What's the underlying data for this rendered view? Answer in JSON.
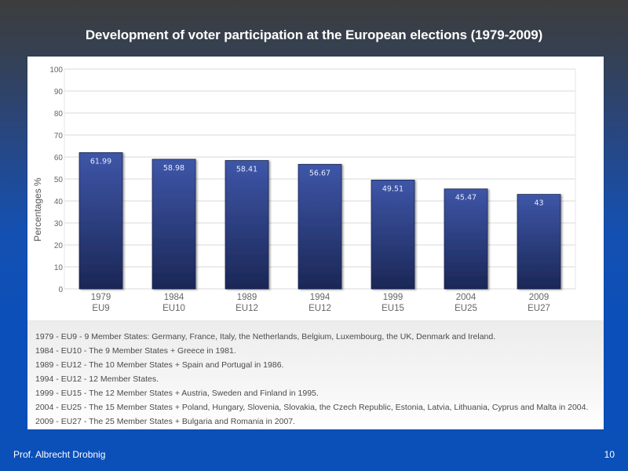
{
  "slide": {
    "title": "Development of voter participation at the European elections (1979-2009)",
    "footer_author": "Prof. Albrecht Drobnig",
    "page_number": "10"
  },
  "chart_data": {
    "type": "bar",
    "title": "Development of voter participation at the European elections (1979-2009)",
    "categories": [
      [
        "1979",
        "EU9"
      ],
      [
        "1984",
        "EU10"
      ],
      [
        "1989",
        "EU12"
      ],
      [
        "1994",
        "EU12"
      ],
      [
        "1999",
        "EU15"
      ],
      [
        "2004",
        "EU25"
      ],
      [
        "2009",
        "EU27"
      ]
    ],
    "values": [
      61.99,
      58.98,
      58.41,
      56.67,
      49.51,
      45.47,
      43
    ],
    "value_labels": [
      "61.99",
      "58.98",
      "58.41",
      "56.67",
      "49.51",
      "45.47",
      "43"
    ],
    "xlabel": "",
    "ylabel": "Percentages %",
    "ylim": [
      0,
      100
    ],
    "yticks": [
      0,
      10,
      20,
      30,
      40,
      50,
      60,
      70,
      80,
      90,
      100
    ],
    "grid": true,
    "legend": "none",
    "colors": {
      "bar_top": "#3e56a8",
      "bar_bottom": "#1b2756",
      "bar_label": "#e6ebff",
      "grid": "#e6e6e6",
      "tick_label": "#666666"
    }
  },
  "notes": [
    "1979 - EU9 - 9 Member States: Germany, France, Italy, the Netherlands, Belgium, Luxembourg, the UK, Denmark and Ireland.",
    "1984 - EU10 - The 9 Member States + Greece in 1981.",
    "1989 - EU12 - The 10 Member States + Spain and Portugal in 1986.",
    "1994 - EU12 - 12 Member States.",
    "1999 - EU15 - The 12 Member States + Austria, Sweden and Finland in 1995.",
    "2004 - EU25 - The 15 Member States + Poland, Hungary, Slovenia, Slovakia, the Czech Republic, Estonia, Latvia, Lithuania, Cyprus and Malta in 2004.",
    "2009 - EU27 - The 25 Member States + Bulgaria and Romania in 2007."
  ]
}
